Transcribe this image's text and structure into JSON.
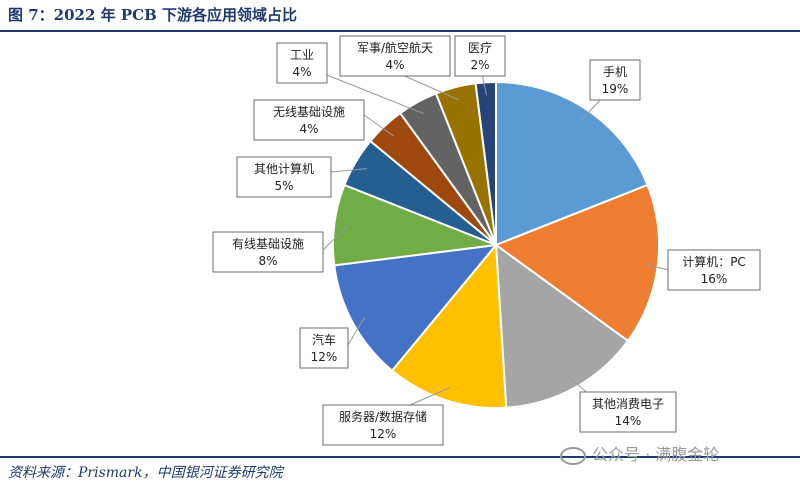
{
  "header": {
    "title": "图 7：2022 年 PCB 下游各应用领域占比"
  },
  "footer": {
    "source": "资料来源：Prismark，中国银河证券研究院",
    "watermark": "公众号 · 满腹金轮"
  },
  "chart_data": {
    "type": "pie",
    "start_angle_deg": 0,
    "direction": "clockwise",
    "slices": [
      {
        "label": "手机",
        "value": 19,
        "display": "19%",
        "color": "#5b9bd5"
      },
      {
        "label": "计算机：PC",
        "value": 16,
        "display": "16%",
        "color": "#ed7d31"
      },
      {
        "label": "其他消费电子",
        "value": 14,
        "display": "14%",
        "color": "#a5a5a5"
      },
      {
        "label": "服务器/数据存储",
        "value": 12,
        "display": "12%",
        "color": "#ffc000"
      },
      {
        "label": "汽车",
        "value": 12,
        "display": "12%",
        "color": "#4472c4"
      },
      {
        "label": "有线基础设施",
        "value": 8,
        "display": "8%",
        "color": "#70ad47"
      },
      {
        "label": "其他计算机",
        "value": 5,
        "display": "5%",
        "color": "#255e91"
      },
      {
        "label": "无线基础设施",
        "value": 4,
        "display": "4%",
        "color": "#9e480e"
      },
      {
        "label": "工业",
        "value": 4,
        "display": "4%",
        "color": "#636363"
      },
      {
        "label": "军事/航空航天",
        "value": 4,
        "display": "4%",
        "color": "#997300"
      },
      {
        "label": "医疗",
        "value": 2,
        "display": "2%",
        "color": "#264478"
      }
    ]
  }
}
